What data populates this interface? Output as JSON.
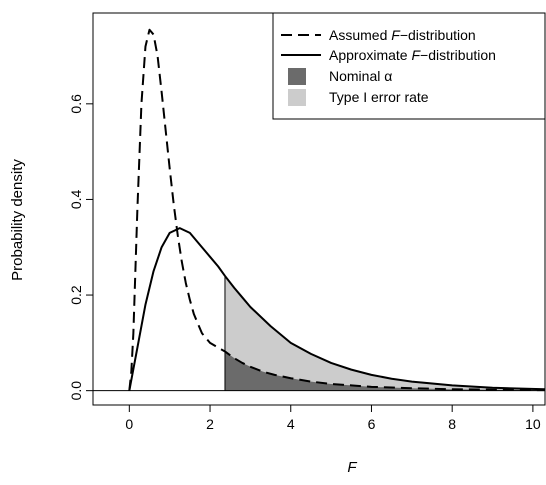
{
  "chart_data": {
    "type": "area",
    "title": "",
    "xlabel": "F",
    "ylabel": "Probability density",
    "xlim": [
      -0.9,
      10.3
    ],
    "ylim": [
      -0.03,
      0.79
    ],
    "x_ticks": [
      0,
      2,
      4,
      6,
      8,
      10
    ],
    "y_ticks": [
      0.0,
      0.2,
      0.4,
      0.6
    ],
    "x_tick_labels": [
      "0",
      "2",
      "4",
      "6",
      "8",
      "10"
    ],
    "y_tick_labels": [
      "0.0",
      "0.2",
      "0.4",
      "0.6"
    ],
    "critical_value": 2.37,
    "grid": false,
    "legend_position": "top-right",
    "series": [
      {
        "name": "Assumed F−distribution",
        "line_style": "dashed",
        "x": [
          0,
          0.05,
          0.1,
          0.2,
          0.3,
          0.4,
          0.5,
          0.6,
          0.7,
          0.8,
          0.9,
          1.0,
          1.1,
          1.2,
          1.3,
          1.4,
          1.5,
          1.6,
          1.8,
          2.0,
          2.2,
          2.37,
          2.6,
          2.8,
          3.0,
          3.3,
          3.6,
          4.0,
          4.5,
          5.0,
          5.5,
          6.0,
          7.0,
          8.0,
          9.0,
          10.3
        ],
        "y": [
          0,
          0.04,
          0.12,
          0.38,
          0.6,
          0.72,
          0.755,
          0.745,
          0.7,
          0.625,
          0.545,
          0.465,
          0.39,
          0.325,
          0.27,
          0.225,
          0.19,
          0.16,
          0.12,
          0.1,
          0.09,
          0.082,
          0.068,
          0.058,
          0.05,
          0.04,
          0.033,
          0.026,
          0.019,
          0.014,
          0.011,
          0.008,
          0.005,
          0.003,
          0.002,
          0.001
        ]
      },
      {
        "name": "Approximate F−distribution",
        "line_style": "solid",
        "x": [
          0,
          0.2,
          0.4,
          0.6,
          0.8,
          1.0,
          1.25,
          1.5,
          1.75,
          2.0,
          2.2,
          2.37,
          2.6,
          2.8,
          3.0,
          3.5,
          4.0,
          4.5,
          5.0,
          5.5,
          6.0,
          6.5,
          7.0,
          8.0,
          9.0,
          10.3
        ],
        "y": [
          0,
          0.09,
          0.18,
          0.25,
          0.3,
          0.33,
          0.34,
          0.33,
          0.305,
          0.28,
          0.26,
          0.24,
          0.215,
          0.195,
          0.175,
          0.135,
          0.1,
          0.077,
          0.058,
          0.044,
          0.033,
          0.025,
          0.019,
          0.011,
          0.006,
          0.003
        ]
      }
    ],
    "shaded_regions": [
      {
        "name": "Nominal α",
        "color": "#6b6b6b",
        "from_x": 2.37,
        "under_series": 0
      },
      {
        "name": "Type I error rate",
        "color": "#cccccc",
        "from_x": 2.37,
        "under_series": 1
      }
    ],
    "legend": [
      {
        "label_pre": "Assumed ",
        "label_italic": "F",
        "label_post": "−distribution",
        "kind": "dashed-line"
      },
      {
        "label_pre": "Approximate ",
        "label_italic": "F",
        "label_post": "−distribution",
        "kind": "solid-line"
      },
      {
        "label_pre": "Nominal α",
        "label_italic": "",
        "label_post": "",
        "kind": "box",
        "color": "#6b6b6b"
      },
      {
        "label_pre": "Type I error rate",
        "label_italic": "",
        "label_post": "",
        "kind": "box",
        "color": "#cccccc"
      }
    ]
  }
}
